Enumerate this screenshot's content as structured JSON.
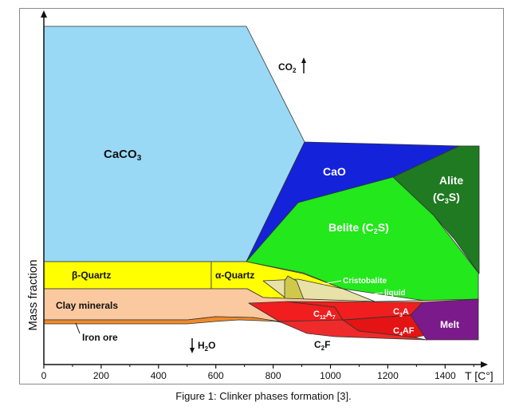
{
  "caption": "Figure 1: Clinker phases formation [3].",
  "chart_data": {
    "type": "area",
    "title": "",
    "xlabel": "T [C°]",
    "ylabel": "Mass fraction",
    "xlim": [
      0,
      1530
    ],
    "x_ticks": [
      0,
      200,
      400,
      600,
      800,
      1000,
      1200,
      1400
    ],
    "regions": [
      {
        "name": "CaCO3",
        "color": "#99d9f6"
      },
      {
        "name": "CaO",
        "color": "#1423d9"
      },
      {
        "name": "Belite (C2S)",
        "color": "#22e81c"
      },
      {
        "name": "Alite (C3S)",
        "color": "#1f7a22"
      },
      {
        "name": "β-Quartz",
        "color": "#ffff00"
      },
      {
        "name": "α-Quartz",
        "color": "#ffff00"
      },
      {
        "name": "Cristobalite",
        "color": "#e8e2a8"
      },
      {
        "name": "liquid",
        "color": "#d0c84a"
      },
      {
        "name": "Clay minerals",
        "color": "#fbc9a0"
      },
      {
        "name": "Iron ore",
        "color": "#f08a2a"
      },
      {
        "name": "C12A7",
        "color": "#f01e1e"
      },
      {
        "name": "C3A",
        "color": "#f01e1e"
      },
      {
        "name": "C4AF",
        "color": "#e41414"
      },
      {
        "name": "C2F",
        "color": "#ee2a2a"
      },
      {
        "name": "Melt",
        "color": "#7b1a8a"
      }
    ],
    "annotations": [
      "CO2",
      "H2O"
    ]
  }
}
